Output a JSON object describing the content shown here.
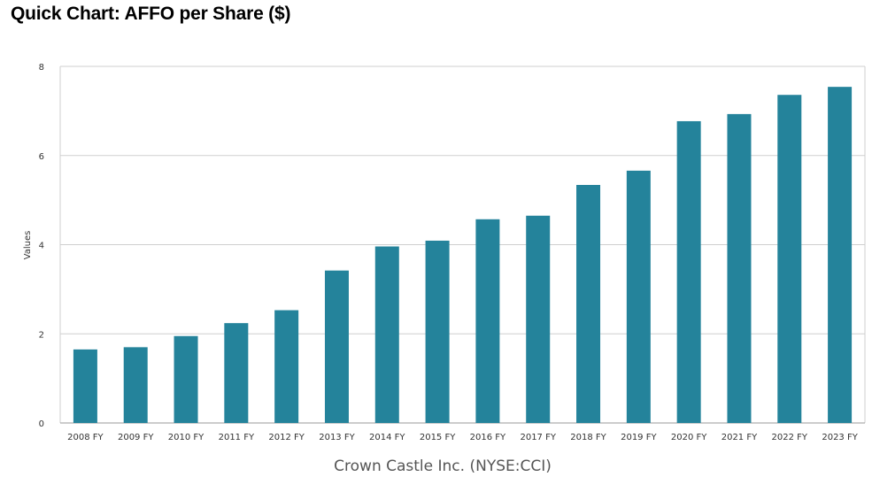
{
  "page": {
    "title": "Quick Chart: AFFO per Share ($)"
  },
  "chart_data": {
    "type": "bar",
    "title": "Quick Chart: AFFO per Share ($)",
    "xlabel": "Crown Castle Inc. (NYSE:CCI)",
    "ylabel": "Values",
    "ylim": [
      0,
      8
    ],
    "yticks": [
      0,
      2,
      4,
      6,
      8
    ],
    "grid": true,
    "bar_color": "#24839b",
    "grid_color": "#cfcfcf",
    "categories": [
      "2008 FY",
      "2009 FY",
      "2010 FY",
      "2011 FY",
      "2012 FY",
      "2013 FY",
      "2014 FY",
      "2015 FY",
      "2016 FY",
      "2017 FY",
      "2018 FY",
      "2019 FY",
      "2020 FY",
      "2021 FY",
      "2022 FY",
      "2023 FY"
    ],
    "values": [
      1.65,
      1.7,
      1.95,
      2.24,
      2.53,
      3.42,
      3.96,
      4.09,
      4.57,
      4.65,
      5.34,
      5.66,
      6.77,
      6.93,
      7.36,
      7.54
    ]
  }
}
